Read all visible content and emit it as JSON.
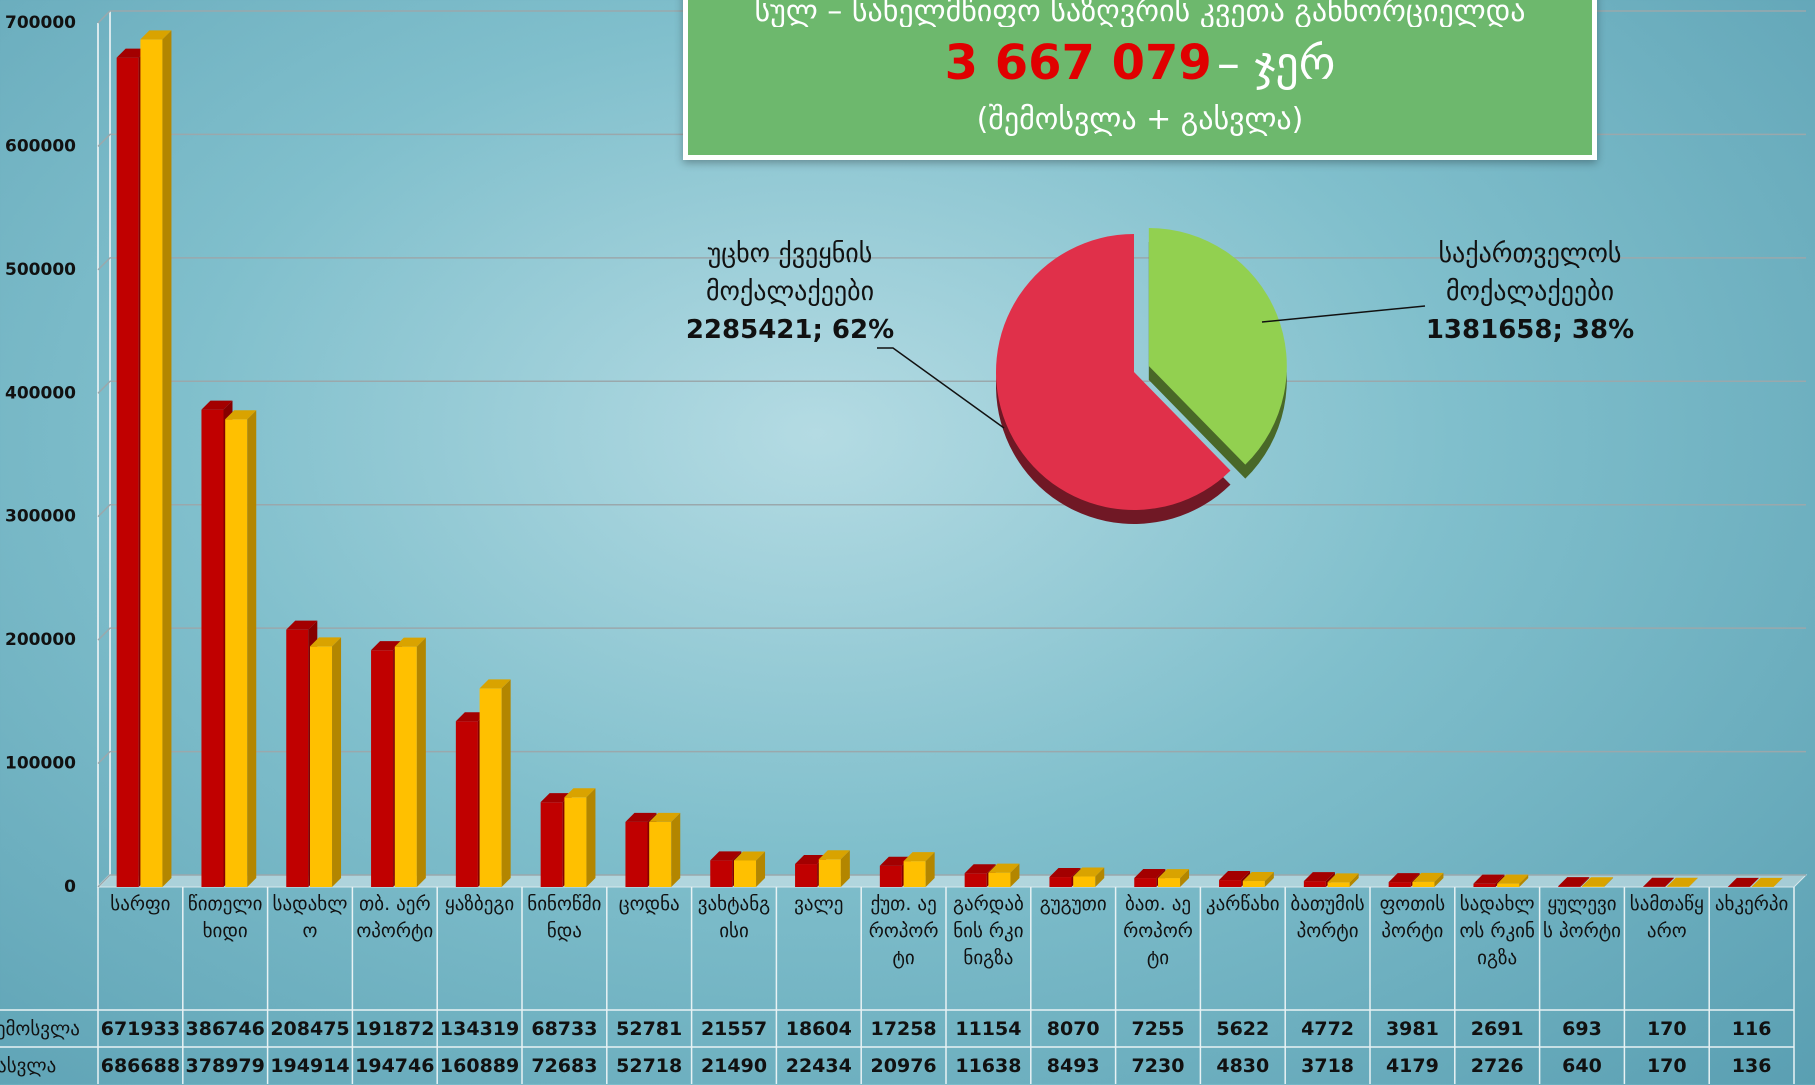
{
  "chart_data": [
    {
      "type": "bar3d",
      "title": "სულ – სახელმწიფო საზღვრის კვეთა განხორციელდა",
      "title_number": "3 667 079",
      "title_suffix": "– ჯერ",
      "subtitle": "(შემოსვლა + გასვლა)",
      "categories": [
        "სარფი",
        "წითელი ხიდი",
        "სადახლო",
        "თბ. აეროპორტი",
        "ყაზბეგი",
        "ნინოწმინდა",
        "ცოდნა",
        "ვახტანგისი",
        "ვალე",
        "ქუთ. აეროპორტი",
        "გარდაბნის რკინიგზა",
        "გუგუთი",
        "ბათ. აეროპორტი",
        "კარწახი",
        "ბათუმის პორტი",
        "ფოთის პორტი",
        "სადახლოს რკინიგზა",
        "ყულევის პორტი",
        "სამთაწყარო",
        "ახკერპი"
      ],
      "series": [
        {
          "name": "შემოსვლა",
          "color": "#c00000",
          "values": [
            671933,
            386746,
            208475,
            191872,
            134319,
            68733,
            52781,
            21557,
            18604,
            17258,
            11154,
            8070,
            7255,
            5622,
            4772,
            3981,
            2691,
            693,
            170,
            116
          ]
        },
        {
          "name": "გასვლა",
          "color": "#ffc000",
          "values": [
            686688,
            378979,
            194914,
            194746,
            160889,
            72683,
            52718,
            21490,
            22434,
            20976,
            11638,
            8493,
            7230,
            4830,
            3718,
            4179,
            2726,
            640,
            170,
            136
          ]
        }
      ],
      "ylim": [
        0,
        700000
      ],
      "yticks": [
        0,
        100000,
        200000,
        300000,
        400000,
        500000,
        600000,
        700000
      ],
      "grid": true
    },
    {
      "type": "pie",
      "categories": [
        "უცხო ქვეყნის მოქალაქეები",
        "საქართველოს მოქალაქეები"
      ],
      "values": [
        2285421,
        1381658
      ],
      "value_labels": [
        "2285421; 62%",
        "1381658; 38%"
      ],
      "colors": [
        "#e0304a",
        "#92d050"
      ]
    }
  ]
}
